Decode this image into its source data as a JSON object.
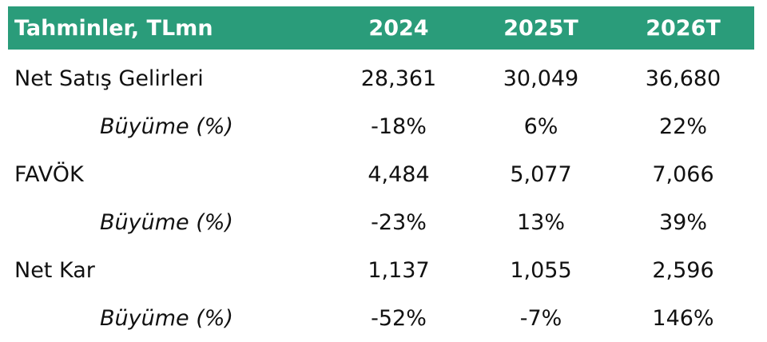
{
  "table": {
    "header": {
      "label": "Tahminler, TLmn",
      "columns": [
        "2024",
        "2025T",
        "2026T"
      ]
    },
    "rows": [
      {
        "label": "Net Satış Gelirleri",
        "values": [
          "28,361",
          "30,049",
          "36,680"
        ]
      },
      {
        "label": "Büyüme (%)",
        "values": [
          "-18%",
          "6%",
          "22%"
        ]
      },
      {
        "label": "FAVÖK",
        "values": [
          "4,484",
          "5,077",
          "7,066"
        ]
      },
      {
        "label": "Büyüme (%)",
        "values": [
          "-23%",
          "13%",
          "39%"
        ]
      },
      {
        "label": "Net Kar",
        "values": [
          "1,137",
          "1,055",
          "2,596"
        ]
      },
      {
        "label": "Büyüme (%)",
        "values": [
          "-52%",
          "-7%",
          "146%"
        ]
      }
    ]
  },
  "colors": {
    "header_bg": "#2a9c7a",
    "header_text": "#ffffff",
    "body_text": "#111111"
  }
}
